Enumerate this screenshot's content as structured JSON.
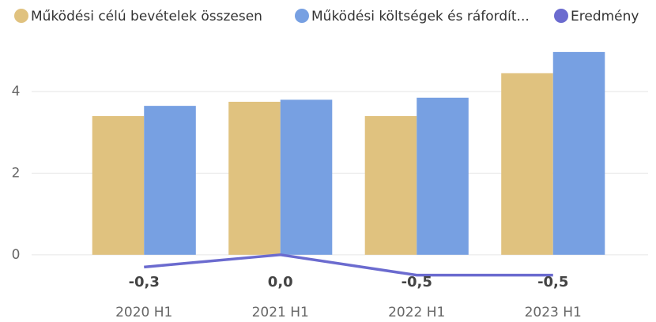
{
  "chart_data": {
    "type": "bar",
    "categories": [
      "2020 H1",
      "2021 H1",
      "2022 H1",
      "2023 H1"
    ],
    "series": [
      {
        "name": "Működési célú bevételek összesen",
        "color": "#e0c27f",
        "type": "bar",
        "values": [
          3.4,
          3.75,
          3.4,
          4.45
        ]
      },
      {
        "name": "Működési költségek és ráfordít...",
        "color": "#77a0e2",
        "type": "bar",
        "values": [
          3.65,
          3.8,
          3.85,
          4.97
        ]
      },
      {
        "name": "Eredmény",
        "color": "#6b6bcf",
        "type": "line",
        "values": [
          -0.3,
          0.0,
          -0.5,
          -0.5
        ],
        "value_labels": [
          "-0,3",
          "0,0",
          "-0,5",
          "-0,5"
        ]
      }
    ],
    "ylim": [
      -0.7,
      5.2
    ],
    "yticks": [
      0,
      2,
      4
    ],
    "grid": true,
    "legend": "top"
  }
}
